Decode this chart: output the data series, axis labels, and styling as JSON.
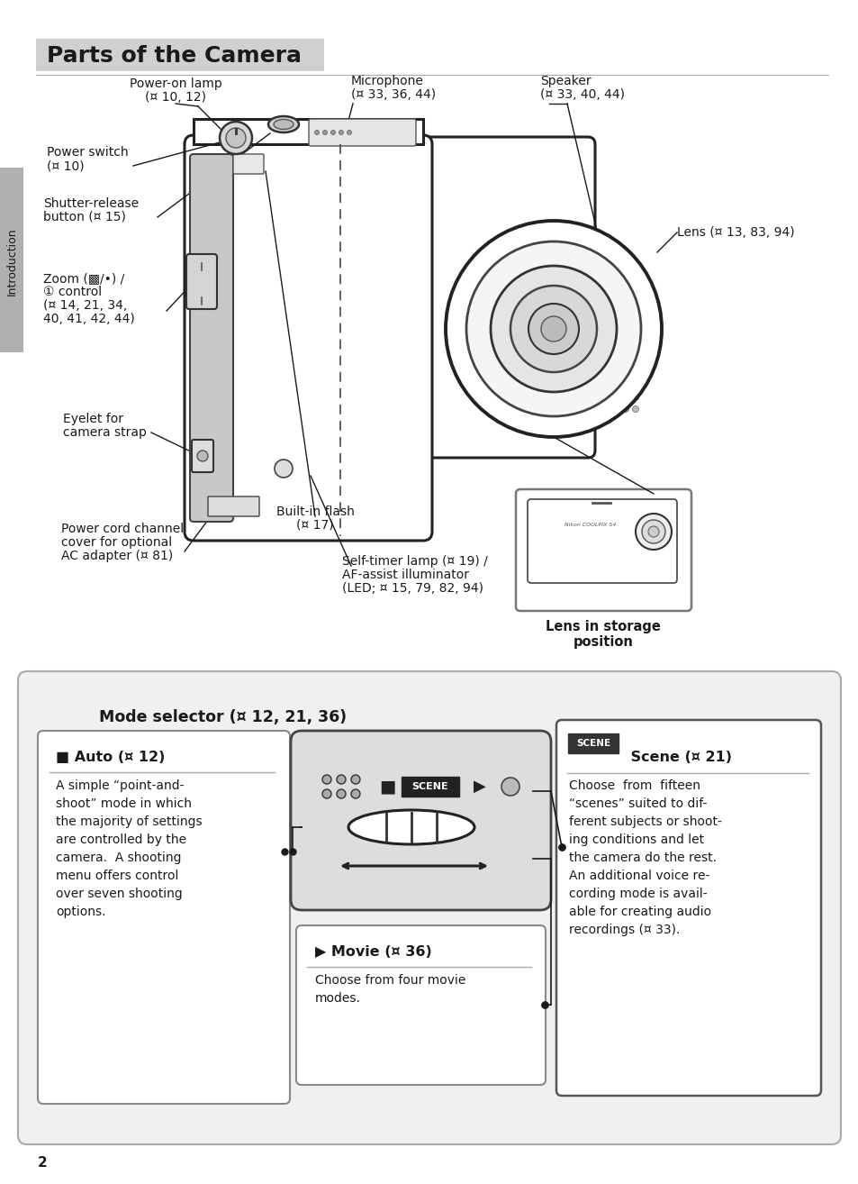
{
  "title": "Parts of the Camera",
  "page_number": "2",
  "sidebar_text": "Introduction",
  "colors": {
    "bg_color": "#ffffff",
    "text": "#1a1a1a",
    "line": "#1a1a1a",
    "box_bg": "#f5f5f5",
    "box_border": "#aaaaaa",
    "sidebar_bg": "#b0b0b0",
    "title_bg": "#d0d0d0",
    "panel_bg": "#f0f0f0",
    "panel_border": "#aaaaaa",
    "dark": "#222222",
    "mid": "#666666",
    "light": "#e8e8e8",
    "white": "#ffffff",
    "scene_border": "#555555"
  },
  "labels": {
    "power_on_lamp_line1": "Power-on lamp",
    "power_on_lamp_line2": "(¤ 10, 12)",
    "microphone_line1": "Microphone",
    "microphone_line2": "(¤ 33, 36, 44)",
    "speaker_line1": "Speaker",
    "speaker_line2": "(¤ 33, 40, 44)",
    "power_switch_line1": "Power switch",
    "power_switch_line2": "(¤ 10)",
    "shutter_line1": "Shutter-release",
    "shutter_line2": "button (¤ 15)",
    "lens": "Lens (¤ 13, 83, 94)",
    "zoom_line1": "Zoom (▩/•) /",
    "zoom_line2": "① control",
    "zoom_line3": "(¤ 14, 21, 34,",
    "zoom_line4": "40, 41, 42, 44)",
    "eyelet_line1": "Eyelet for",
    "eyelet_line2": "camera strap",
    "power_cord_line1": "Power cord channel",
    "power_cord_line2": "cover for optional",
    "power_cord_line3": "AC adapter (¤ 81)",
    "built_flash_line1": "Built-in flash",
    "built_flash_line2": "(¤ 17)",
    "self_timer_line1": "Self-timer lamp (¤ 19) /",
    "self_timer_line2": "AF-assist illuminator",
    "self_timer_line3": "(LED; ¤ 15, 79, 82, 94)",
    "lens_storage_line1": "Lens in storage",
    "lens_storage_line2": "position",
    "mode_selector": "Mode selector (¤ 12, 21, 36)",
    "scene_badge": "SCENE",
    "scene_title": " Scene (¤ 21)",
    "auto_title": "■ Auto (¤ 12)",
    "auto_desc": "A simple “point-and-\nshoot” mode in which\nthe majority of settings\nare controlled by the\ncamera.  A shooting\nmenu offers control\nover seven shooting\noptions.",
    "movie_title": "▶ Movie (¤ 36)",
    "movie_desc": "Choose from four movie\nmodes.",
    "scene_desc": "Choose  from  fifteen\n“scenes” suited to dif-\nferent subjects or shoot-\ning conditions and let\nthe camera do the rest.\nAn additional voice re-\ncording mode is avail-\nable for creating audio\nrecordings (¤ 33)."
  }
}
